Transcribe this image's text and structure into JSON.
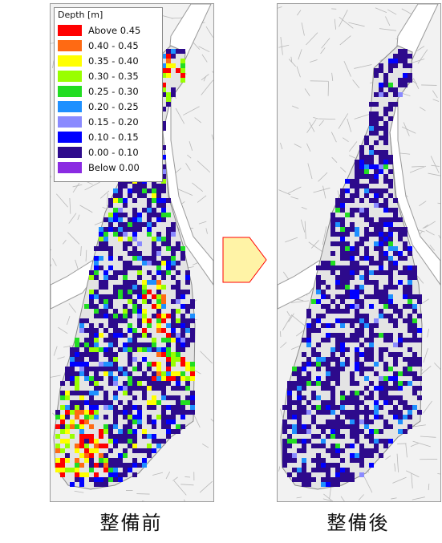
{
  "legend": {
    "title": "Depth [m]",
    "entries": [
      {
        "label": "Above 0.45",
        "color": "#ff0000"
      },
      {
        "label": "0.40 - 0.45",
        "color": "#ff6a13"
      },
      {
        "label": "0.35 - 0.40",
        "color": "#ffff00"
      },
      {
        "label": "0.30 - 0.35",
        "color": "#99ff00"
      },
      {
        "label": "0.25 - 0.30",
        "color": "#22dd22"
      },
      {
        "label": "0.20 - 0.25",
        "color": "#1e90ff"
      },
      {
        "label": "0.15 - 0.20",
        "color": "#8a8aff"
      },
      {
        "label": "0.10 - 0.15",
        "color": "#0000ff"
      },
      {
        "label": "0.00 - 0.10",
        "color": "#2d0a8c"
      },
      {
        "label": "Below 0.00",
        "color": "#8a2be2"
      }
    ]
  },
  "maps": [
    {
      "caption": "整備前",
      "state": "before"
    },
    {
      "caption": "整備後",
      "state": "after"
    }
  ],
  "colors": {
    "background": "#f2f2f2",
    "river": "#ffffff",
    "dominant_depth": "#2d0a8c",
    "arrow_fill": "#fff3a6",
    "arrow_stroke": "#ff0000"
  }
}
